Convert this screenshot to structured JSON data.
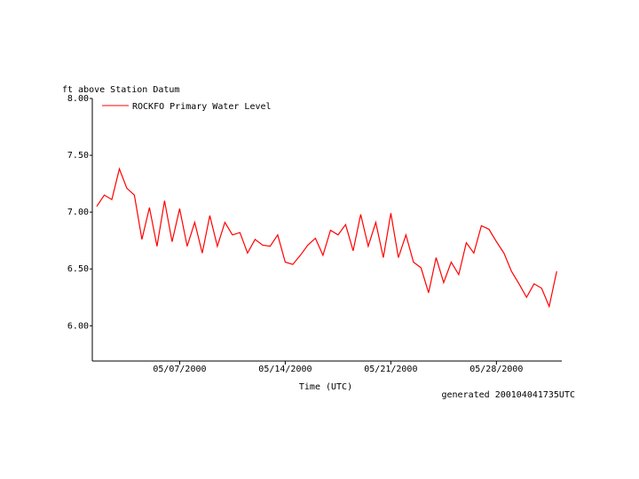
{
  "chart_data": {
    "type": "line",
    "y_label": "ft above Station Datum",
    "x_label": "Time (UTC)",
    "footer": "generated 200104041735UTC",
    "x": [
      "2000-05-01T12:00",
      "2000-05-02T00:00",
      "2000-05-02T12:00",
      "2000-05-03T00:00",
      "2000-05-03T12:00",
      "2000-05-04T00:00",
      "2000-05-04T12:00",
      "2000-05-05T00:00",
      "2000-05-05T12:00",
      "2000-05-06T00:00",
      "2000-05-06T12:00",
      "2000-05-07T00:00",
      "2000-05-07T12:00",
      "2000-05-08T00:00",
      "2000-05-08T12:00",
      "2000-05-09T00:00",
      "2000-05-09T12:00",
      "2000-05-10T00:00",
      "2000-05-10T12:00",
      "2000-05-11T00:00",
      "2000-05-11T12:00",
      "2000-05-12T00:00",
      "2000-05-12T12:00",
      "2000-05-13T00:00",
      "2000-05-13T12:00",
      "2000-05-14T00:00",
      "2000-05-14T12:00",
      "2000-05-15T00:00",
      "2000-05-15T12:00",
      "2000-05-16T00:00",
      "2000-05-16T12:00",
      "2000-05-17T00:00",
      "2000-05-17T12:00",
      "2000-05-18T00:00",
      "2000-05-18T12:00",
      "2000-05-19T00:00",
      "2000-05-19T12:00",
      "2000-05-20T00:00",
      "2000-05-20T12:00",
      "2000-05-21T00:00",
      "2000-05-21T12:00",
      "2000-05-22T00:00",
      "2000-05-22T12:00",
      "2000-05-23T00:00",
      "2000-05-23T12:00",
      "2000-05-24T00:00",
      "2000-05-24T12:00",
      "2000-05-25T00:00",
      "2000-05-25T12:00",
      "2000-05-26T00:00",
      "2000-05-26T12:00",
      "2000-05-27T00:00",
      "2000-05-27T12:00",
      "2000-05-28T00:00",
      "2000-05-28T12:00",
      "2000-05-29T00:00",
      "2000-05-29T12:00",
      "2000-05-30T00:00",
      "2000-05-30T12:00",
      "2000-05-31T00:00",
      "2000-05-31T12:00",
      "2000-06-01T00:00"
    ],
    "series": [
      {
        "name": "ROCKFO Primary Water Level",
        "color": "#ff0000",
        "values": [
          7.05,
          7.15,
          7.11,
          7.38,
          7.21,
          7.15,
          6.76,
          7.04,
          6.7,
          7.1,
          6.74,
          7.03,
          6.7,
          6.91,
          6.64,
          6.97,
          6.7,
          6.91,
          6.8,
          6.82,
          6.64,
          6.76,
          6.71,
          6.7,
          6.8,
          6.56,
          6.54,
          6.62,
          6.71,
          6.77,
          6.62,
          6.84,
          6.8,
          6.89,
          6.66,
          6.98,
          6.7,
          6.91,
          6.6,
          6.99,
          6.6,
          6.8,
          6.56,
          6.51,
          6.29,
          6.6,
          6.38,
          6.56,
          6.45,
          6.73,
          6.64,
          6.88,
          6.85,
          6.74,
          6.64,
          6.48,
          6.37,
          6.25,
          6.37,
          6.33,
          6.17,
          6.48
        ]
      }
    ],
    "xlim": [
      "2000-05-01T05:00",
      "2000-06-01T08:00"
    ],
    "xticks": [
      {
        "value": "2000-05-07T00:00",
        "label": "05/07/2000"
      },
      {
        "value": "2000-05-14T00:00",
        "label": "05/14/2000"
      },
      {
        "value": "2000-05-21T00:00",
        "label": "05/21/2000"
      },
      {
        "value": "2000-05-28T00:00",
        "label": "05/28/2000"
      }
    ],
    "ylim": [
      5.69,
      8.0
    ],
    "yticks": [
      {
        "value": 6,
        "label": "6.00"
      },
      {
        "value": 6.5,
        "label": "6.50"
      },
      {
        "value": 7,
        "label": "7.00"
      },
      {
        "value": 7.5,
        "label": "7.50"
      },
      {
        "value": 8,
        "label": "8.00"
      }
    ]
  }
}
